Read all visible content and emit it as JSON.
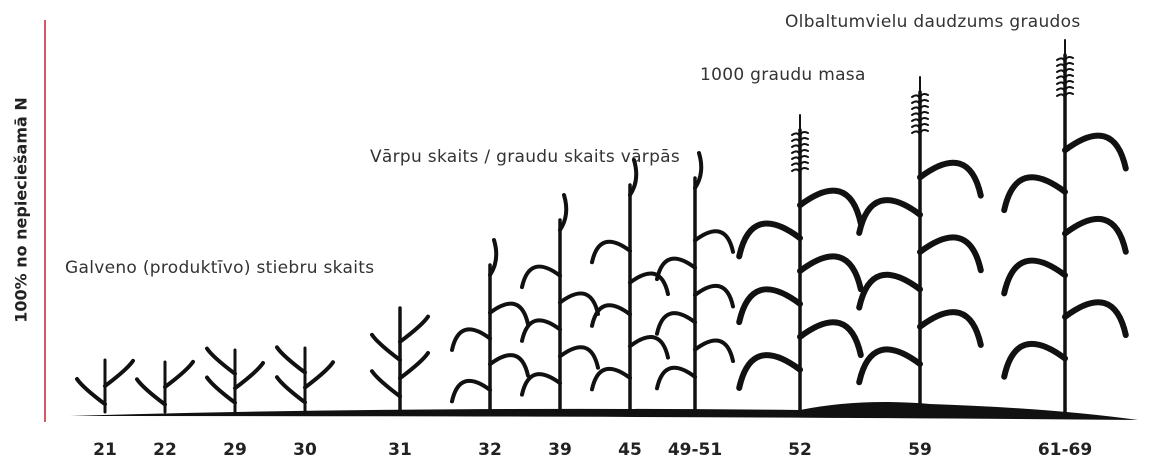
{
  "axis_label": "100% no nepieciešamā N",
  "annotations": [
    "Galveno (produktīvo) stiebru skaits",
    "Vārpu skaits / graudu skaits vārpās",
    "1000 graudu masa",
    "Olbaltumvielu daudzums graudos"
  ],
  "stages": [
    "21",
    "22",
    "29",
    "30",
    "31",
    "32",
    "39",
    "45",
    "49-51",
    "52",
    "59",
    "61-69"
  ]
}
